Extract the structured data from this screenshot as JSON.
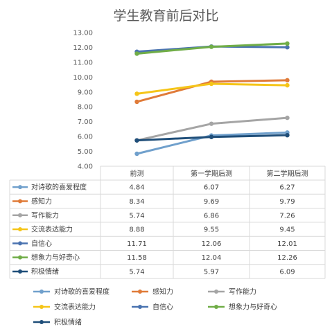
{
  "chart_data": {
    "type": "line",
    "title": "学生教育前后对比",
    "categories": [
      "前测",
      "第一学期后测",
      "第二学期后测"
    ],
    "ylim": [
      4.0,
      13.0
    ],
    "yticks": [
      "4.00",
      "5.00",
      "6.00",
      "7.00",
      "8.00",
      "9.00",
      "10.00",
      "11.00",
      "12.00",
      "13.00"
    ],
    "grid": false,
    "legend": "bottom",
    "series": [
      {
        "name": "对诗歌的喜爱程度",
        "color": "#70a0cc",
        "values": [
          4.84,
          6.07,
          6.27
        ],
        "labels": [
          "4.84",
          "6.07",
          "6.27"
        ]
      },
      {
        "name": "感知力",
        "color": "#e07b39",
        "values": [
          8.34,
          9.69,
          9.79
        ],
        "labels": [
          "8.34",
          "9.69",
          "9.79"
        ]
      },
      {
        "name": "写作能力",
        "color": "#a5a5a5",
        "values": [
          5.74,
          6.86,
          7.26
        ],
        "labels": [
          "5.74",
          "6.86",
          "7.26"
        ]
      },
      {
        "name": "交流表达能力",
        "color": "#f5c518",
        "values": [
          8.88,
          9.55,
          9.45
        ],
        "labels": [
          "8.88",
          "9.55",
          "9.45"
        ]
      },
      {
        "name": "自信心",
        "color": "#4a73b0",
        "values": [
          11.71,
          12.06,
          12.01
        ],
        "labels": [
          "11.71",
          "12.06",
          "12.01"
        ]
      },
      {
        "name": "想象力与好奇心",
        "color": "#70ad47",
        "values": [
          11.58,
          12.04,
          12.26
        ],
        "labels": [
          "11.58",
          "12.04",
          "12.26"
        ]
      },
      {
        "name": "积极情绪",
        "color": "#1f4e79",
        "values": [
          5.74,
          5.97,
          6.09
        ],
        "labels": [
          "5.74",
          "5.97",
          "6.09"
        ]
      }
    ]
  }
}
